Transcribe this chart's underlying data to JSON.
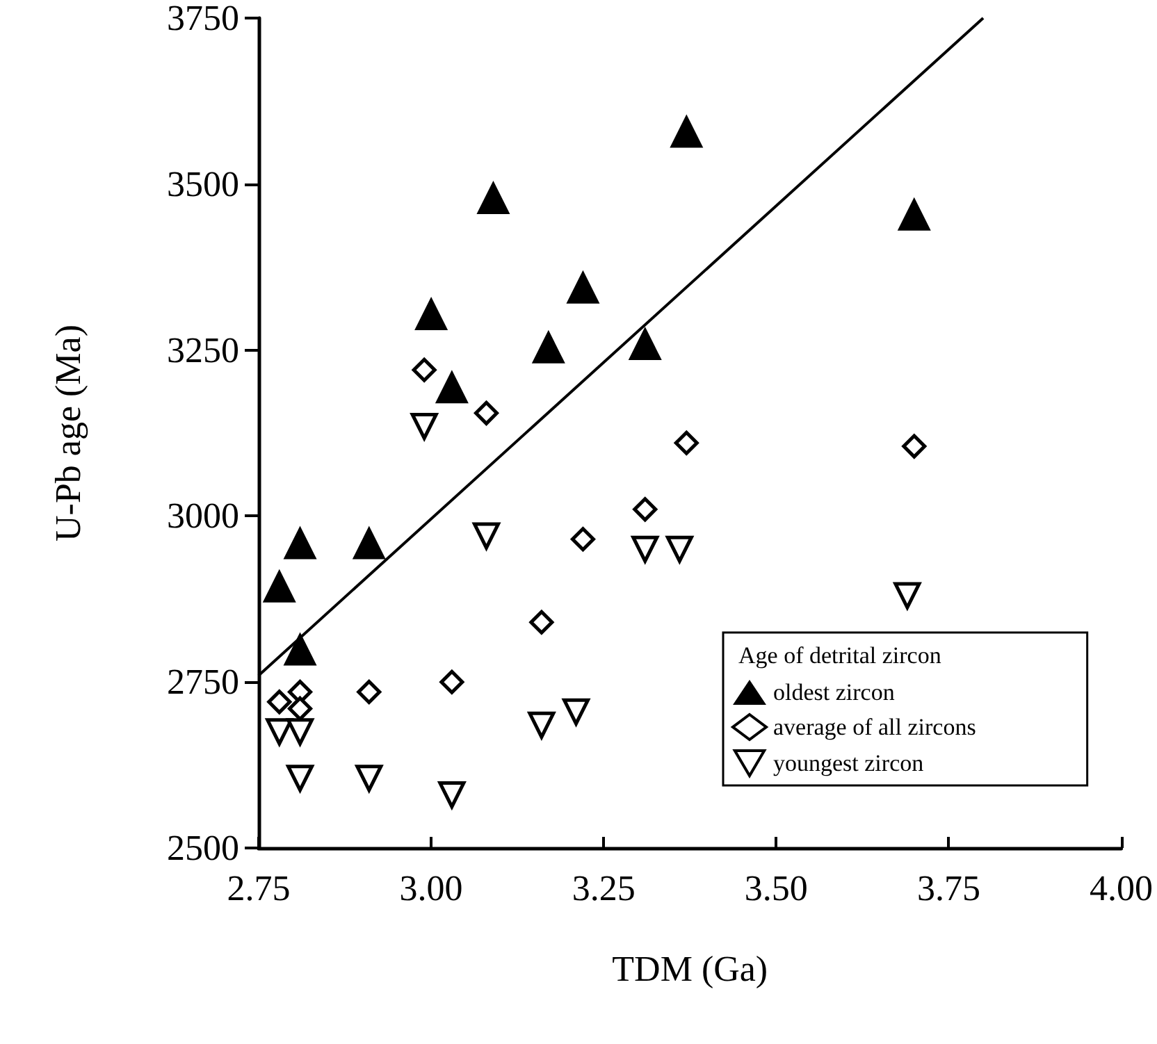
{
  "chart_data": {
    "type": "scatter",
    "xlabel": "TDM (Ga)",
    "ylabel": "U-Pb age (Ma)",
    "legend_title": "Age of detrital zircon",
    "legend": "bottom right",
    "grid": false,
    "xlim": [
      2.75,
      4.0
    ],
    "xticks": [
      {
        "value": 2.75,
        "label": "2.75"
      },
      {
        "value": 3.0,
        "label": "3.00"
      },
      {
        "value": 3.25,
        "label": "3.25"
      },
      {
        "value": 3.5,
        "label": "3.50"
      },
      {
        "value": 3.75,
        "label": "3.75"
      },
      {
        "value": 4.0,
        "label": "4.00"
      }
    ],
    "ylim": [
      2500,
      3750
    ],
    "yticks": [
      2500,
      2750,
      3000,
      3250,
      3500,
      3750
    ],
    "series": [
      {
        "name": "oldest zircon",
        "marker": "triangle",
        "color": "#000000",
        "x": [
          2.78,
          2.81,
          2.91,
          2.81,
          3.0,
          3.03,
          3.09,
          3.17,
          3.22,
          3.31,
          3.37,
          3.7
        ],
        "values": [
          2895,
          2960,
          2960,
          2800,
          3305,
          3195,
          3480,
          3255,
          3345,
          3260,
          3580,
          3455
        ]
      },
      {
        "name": "average of all zircons",
        "marker": "diamond",
        "color": "#000000",
        "x": [
          2.78,
          2.81,
          2.81,
          2.91,
          3.03,
          2.99,
          3.08,
          3.16,
          3.22,
          3.31,
          3.37,
          3.7
        ],
        "values": [
          2720,
          2735,
          2710,
          2735,
          2750,
          3220,
          3155,
          2840,
          2965,
          3010,
          3110,
          3105
        ]
      },
      {
        "name": "youngest zircon",
        "marker": "triangle-down",
        "color": "#000000",
        "x": [
          2.78,
          2.81,
          2.81,
          2.91,
          3.03,
          2.99,
          3.08,
          3.16,
          3.21,
          3.31,
          3.36,
          3.69
        ],
        "values": [
          2675,
          2675,
          2605,
          2605,
          2580,
          3135,
          2970,
          2685,
          2705,
          2950,
          2950,
          2880
        ]
      },
      {
        "type": "line",
        "color": "#000000",
        "x": [
          2.75,
          3.8
        ],
        "values": [
          2760,
          3750
        ]
      }
    ]
  }
}
